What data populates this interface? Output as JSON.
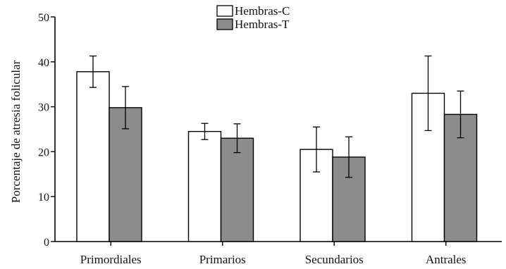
{
  "chart_data": {
    "type": "bar",
    "title": "",
    "xlabel": "",
    "ylabel": "Porcentaje de atresia folicular",
    "ylim": [
      0,
      50
    ],
    "yticks": [
      0,
      10,
      20,
      30,
      40,
      50
    ],
    "categories": [
      "Primordiales",
      "Primarios",
      "Secundarios",
      "Antrales"
    ],
    "series": [
      {
        "name": "Hembras-C",
        "color": "#ffffff",
        "values": [
          37.8,
          24.5,
          20.5,
          33.0
        ],
        "errors": [
          3.5,
          1.8,
          5.0,
          8.3
        ]
      },
      {
        "name": "Hembras-T",
        "color": "#8c8c8c",
        "values": [
          29.8,
          23.0,
          18.8,
          28.3
        ],
        "errors": [
          4.7,
          3.2,
          4.5,
          5.2
        ]
      }
    ],
    "error_bars": true,
    "grid": false,
    "legend": "top-center"
  }
}
